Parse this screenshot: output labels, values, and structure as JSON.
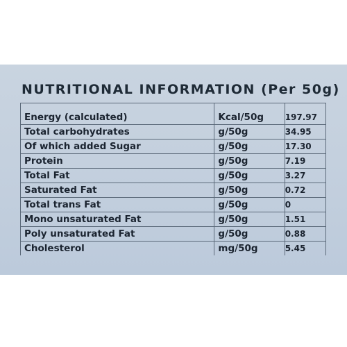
{
  "title": "NUTRITIONAL INFORMATION (Per 50g)",
  "rows": [
    {
      "name": "Energy (calculated)",
      "unit": "Kcal/50g",
      "value": "197.97"
    },
    {
      "name": "Total carbohydrates",
      "unit": "g/50g",
      "value": "34.95"
    },
    {
      "name": "Of which added Sugar",
      "unit": "g/50g",
      "value": "17.30"
    },
    {
      "name": "Protein",
      "unit": "g/50g",
      "value": "7.19"
    },
    {
      "name": "Total Fat",
      "unit": "g/50g",
      "value": "3.27"
    },
    {
      "name": "Saturated Fat",
      "unit": "g/50g",
      "value": "0.72"
    },
    {
      "name": "Total trans Fat",
      "unit": "g/50g",
      "value": "0"
    },
    {
      "name": "Mono unsaturated Fat",
      "unit": "g/50g",
      "value": "1.51"
    },
    {
      "name": "Poly unsaturated Fat",
      "unit": "g/50g",
      "value": "0.88"
    },
    {
      "name": "Cholesterol",
      "unit": "mg/50g",
      "value": "5.45"
    }
  ]
}
